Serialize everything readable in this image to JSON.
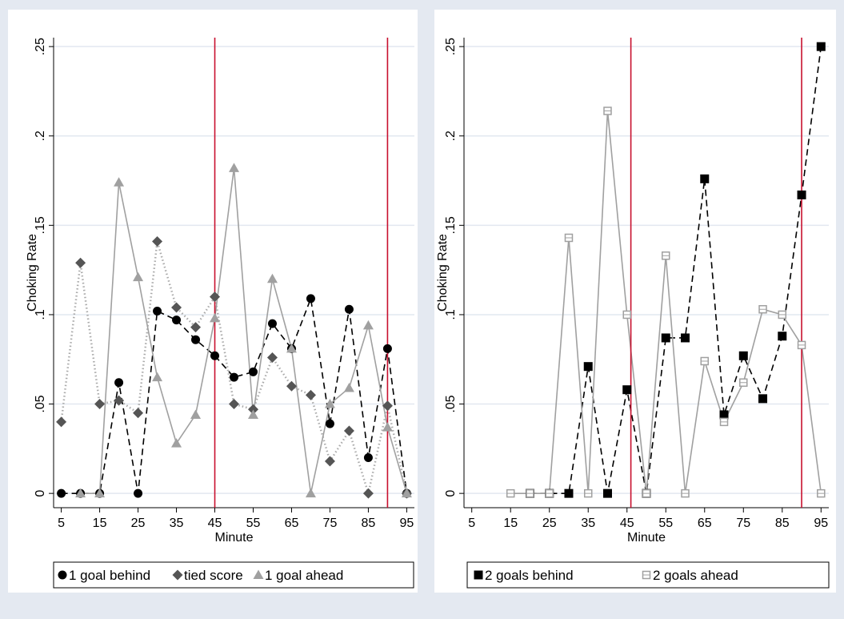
{
  "chart_data": [
    {
      "type": "line",
      "xlabel": "Minute",
      "ylabel": "Choking Rate",
      "xlim": [
        3,
        97
      ],
      "ylim": [
        -0.008,
        0.255
      ],
      "x_ticks": [
        5,
        15,
        25,
        35,
        45,
        55,
        65,
        75,
        85,
        95
      ],
      "y_ticks": [
        {
          "value": 0,
          "label": "0"
        },
        {
          "value": 0.05,
          "label": ".05"
        },
        {
          "value": 0.1,
          "label": ".1"
        },
        {
          "value": 0.15,
          "label": ".15"
        },
        {
          "value": 0.2,
          "label": ".2"
        },
        {
          "value": 0.25,
          "label": ".25"
        }
      ],
      "grid": "horizontal",
      "vlines": [
        45,
        90
      ],
      "vline_color": "#c8102e",
      "legend": "bottom",
      "series": [
        {
          "name": "1 goal behind",
          "marker": "circle",
          "color": "#000000",
          "line_color": "#000000",
          "dash": "dashed",
          "points": [
            [
              5,
              0
            ],
            [
              10,
              0
            ],
            [
              15,
              0
            ],
            [
              20,
              0.062
            ],
            [
              25,
              0
            ],
            [
              30,
              0.102
            ],
            [
              35,
              0.097
            ],
            [
              40,
              0.086
            ],
            [
              45,
              0.077
            ],
            [
              50,
              0.065
            ],
            [
              55,
              0.068
            ],
            [
              60,
              0.095
            ],
            [
              65,
              0.081
            ],
            [
              70,
              0.109
            ],
            [
              75,
              0.039
            ],
            [
              80,
              0.103
            ],
            [
              85,
              0.02
            ],
            [
              90,
              0.081
            ],
            [
              95,
              0
            ]
          ]
        },
        {
          "name": "tied score",
          "marker": "diamond",
          "color": "#555555",
          "line_color": "#aaaaaa",
          "dash": "dotted",
          "points": [
            [
              5,
              0.04
            ],
            [
              10,
              0.129
            ],
            [
              15,
              0.05
            ],
            [
              20,
              0.052
            ],
            [
              25,
              0.045
            ],
            [
              30,
              0.141
            ],
            [
              35,
              0.104
            ],
            [
              40,
              0.093
            ],
            [
              45,
              0.11
            ],
            [
              50,
              0.05
            ],
            [
              55,
              0.047
            ],
            [
              60,
              0.076
            ],
            [
              65,
              0.06
            ],
            [
              70,
              0.055
            ],
            [
              75,
              0.018
            ],
            [
              80,
              0.035
            ],
            [
              85,
              0
            ],
            [
              90,
              0.049
            ],
            [
              95,
              0
            ]
          ]
        },
        {
          "name": "1 goal ahead",
          "marker": "triangle",
          "color": "#a0a0a0",
          "line_color": "#a0a0a0",
          "dash": "solid",
          "points": [
            [
              10,
              0
            ],
            [
              15,
              0
            ],
            [
              20,
              0.174
            ],
            [
              25,
              0.121
            ],
            [
              30,
              0.065
            ],
            [
              35,
              0.028
            ],
            [
              40,
              0.044
            ],
            [
              45,
              0.098
            ],
            [
              50,
              0.182
            ],
            [
              55,
              0.044
            ],
            [
              60,
              0.12
            ],
            [
              65,
              0.081
            ],
            [
              70,
              0
            ],
            [
              75,
              0.05
            ],
            [
              80,
              0.059
            ],
            [
              85,
              0.094
            ],
            [
              90,
              0.037
            ],
            [
              95,
              0
            ]
          ]
        }
      ]
    },
    {
      "type": "line",
      "xlabel": "Minute",
      "ylabel": "Choking Rate",
      "xlim": [
        3,
        97
      ],
      "ylim": [
        -0.008,
        0.255
      ],
      "x_ticks": [
        5,
        15,
        25,
        35,
        45,
        55,
        65,
        75,
        85,
        95
      ],
      "y_ticks": [
        {
          "value": 0,
          "label": "0"
        },
        {
          "value": 0.05,
          "label": ".05"
        },
        {
          "value": 0.1,
          "label": ".1"
        },
        {
          "value": 0.15,
          "label": ".15"
        },
        {
          "value": 0.2,
          "label": ".2"
        },
        {
          "value": 0.25,
          "label": ".25"
        }
      ],
      "grid": "horizontal",
      "vlines": [
        46,
        90
      ],
      "vline_color": "#c8102e",
      "legend": "bottom",
      "series": [
        {
          "name": "2 goals behind",
          "marker": "square",
          "color": "#000000",
          "line_color": "#000000",
          "dash": "dashed",
          "points": [
            [
              20,
              0
            ],
            [
              25,
              0
            ],
            [
              30,
              0
            ],
            [
              35,
              0.071
            ],
            [
              40,
              0
            ],
            [
              45,
              0.058
            ],
            [
              50,
              0
            ],
            [
              55,
              0.087
            ],
            [
              60,
              0.087
            ],
            [
              65,
              0.176
            ],
            [
              70,
              0.044
            ],
            [
              75,
              0.077
            ],
            [
              80,
              0.053
            ],
            [
              85,
              0.088
            ],
            [
              90,
              0.167
            ],
            [
              95,
              0.25
            ]
          ]
        },
        {
          "name": "2 goals ahead",
          "marker": "square-hollow",
          "color": "#a0a0a0",
          "line_color": "#a0a0a0",
          "dash": "solid",
          "points": [
            [
              15,
              0
            ],
            [
              20,
              0
            ],
            [
              25,
              0
            ],
            [
              30,
              0.143
            ],
            [
              35,
              0
            ],
            [
              40,
              0.214
            ],
            [
              45,
              0.1
            ],
            [
              50,
              0
            ],
            [
              55,
              0.133
            ],
            [
              60,
              0
            ],
            [
              65,
              0.074
            ],
            [
              70,
              0.04
            ],
            [
              75,
              0.062
            ],
            [
              80,
              0.103
            ],
            [
              85,
              0.1
            ],
            [
              90,
              0.083
            ],
            [
              95,
              0
            ]
          ]
        }
      ]
    }
  ]
}
